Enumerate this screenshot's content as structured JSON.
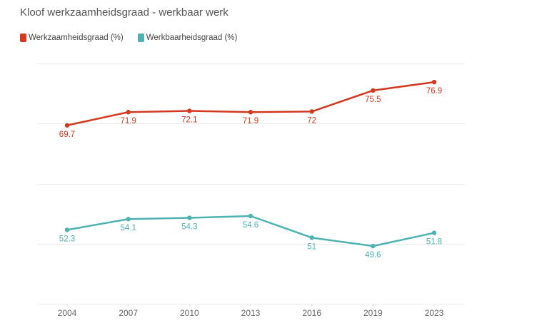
{
  "chart_data": {
    "type": "line",
    "title": "Kloof werkzaamheidsgraad - werkbaar werk",
    "xlabel": "",
    "ylabel": "",
    "categories": [
      "2004",
      "2007",
      "2010",
      "2013",
      "2016",
      "2019",
      "2023"
    ],
    "ylim": [
      40,
      80
    ],
    "grid": true,
    "y_ticks_shown": false,
    "legend_position": "top-left",
    "series": [
      {
        "name": "Werkzaamheidsgraad (%)",
        "color": "#d2391f",
        "values": [
          69.7,
          71.9,
          72.1,
          71.9,
          72,
          75.5,
          76.9
        ],
        "labels": [
          "69.7",
          "71.9",
          "72.1",
          "71.9",
          "72",
          "75.5",
          "76.9"
        ]
      },
      {
        "name": "Werkbaarheidsgraad (%)",
        "color": "#4db2b0",
        "values": [
          52.3,
          54.1,
          54.3,
          54.6,
          51,
          49.6,
          51.8
        ],
        "labels": [
          "52.3",
          "54.1",
          "54.3",
          "54.6",
          "51",
          "49.6",
          "51.8"
        ]
      }
    ]
  }
}
